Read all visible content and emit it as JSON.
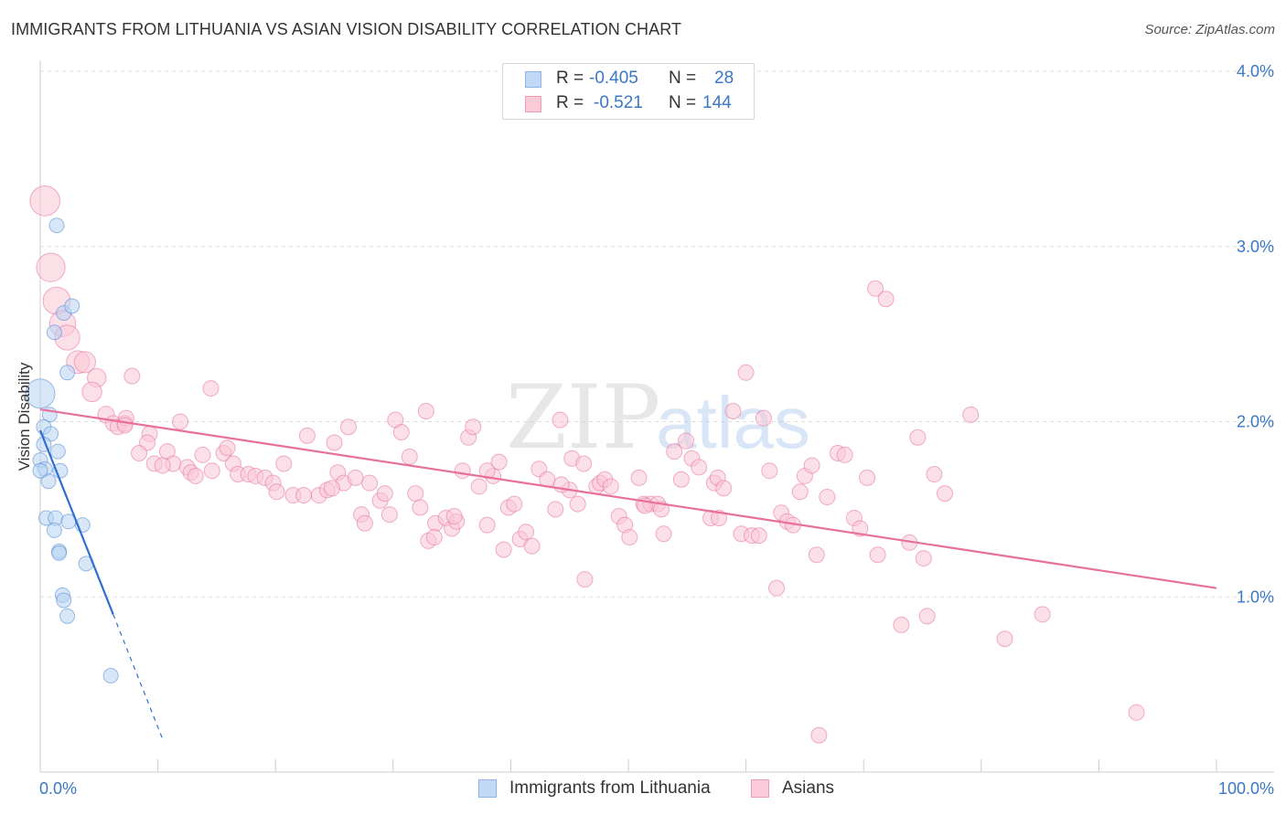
{
  "title": "IMMIGRANTS FROM LITHUANIA VS ASIAN VISION DISABILITY CORRELATION CHART",
  "source": "Source: ZipAtlas.com",
  "watermark": {
    "zip": "ZIP",
    "atlas": "atlas"
  },
  "legend": {
    "rows": [
      {
        "r_label": "R =",
        "r_value": "-0.405",
        "n_label": "N =",
        "n_value": "28",
        "color": "#a9c9f0"
      },
      {
        "r_label": "R =",
        "r_value": "-0.521",
        "n_label": "N =",
        "n_value": "144",
        "color": "#f6b3c8"
      }
    ]
  },
  "bottom_legend": [
    {
      "label": "Immigrants from Lithuania",
      "color": "#a9c9f0"
    },
    {
      "label": "Asians",
      "color": "#f6b3c8"
    }
  ],
  "chart_data": {
    "type": "scatter",
    "title": "IMMIGRANTS FROM LITHUANIA VS ASIAN VISION DISABILITY CORRELATION CHART",
    "xlabel": "",
    "ylabel": "Vision Disability",
    "xlim": [
      0,
      100
    ],
    "ylim": [
      0,
      4.0
    ],
    "x_tick_labels": [
      "0.0%",
      "100.0%"
    ],
    "y_ticks": [
      1.0,
      2.0,
      3.0,
      4.0
    ],
    "y_tick_labels": [
      "1.0%",
      "2.0%",
      "3.0%",
      "4.0%"
    ],
    "grid": true,
    "series": [
      {
        "name": "Immigrants from Lithuania",
        "color": "#4f86d6",
        "fill": "#b7d3f3",
        "r": -0.405,
        "n": 28,
        "trendline": {
          "x_start": 0,
          "y_start": 1.95,
          "x_end": 6.2,
          "y_end": 0.9,
          "dashed_to_x": 10.5
        },
        "points": [
          [
            1.4,
            3.12
          ],
          [
            2.0,
            2.62
          ],
          [
            2.7,
            2.66
          ],
          [
            1.2,
            2.51
          ],
          [
            2.3,
            2.28
          ],
          [
            0.0,
            2.16
          ],
          [
            0.8,
            2.04
          ],
          [
            0.3,
            1.97
          ],
          [
            0.9,
            1.93
          ],
          [
            0.3,
            1.87
          ],
          [
            1.5,
            1.83
          ],
          [
            0.0,
            1.78
          ],
          [
            0.4,
            1.73
          ],
          [
            1.7,
            1.72
          ],
          [
            0.7,
            1.66
          ],
          [
            0.5,
            1.45
          ],
          [
            1.3,
            1.45
          ],
          [
            2.4,
            1.43
          ],
          [
            3.6,
            1.41
          ],
          [
            1.2,
            1.38
          ],
          [
            1.6,
            1.26
          ],
          [
            1.6,
            1.25
          ],
          [
            3.9,
            1.19
          ],
          [
            1.9,
            1.01
          ],
          [
            2.0,
            0.98
          ],
          [
            2.3,
            0.89
          ],
          [
            6.0,
            0.55
          ],
          [
            0.0,
            1.72
          ]
        ]
      },
      {
        "name": "Asians",
        "color": "#e8709a",
        "fill": "#f9c6d6",
        "r": -0.521,
        "n": 144,
        "trendline": {
          "x_start": 0,
          "y_start": 2.07,
          "x_end": 100,
          "y_end": 1.05
        },
        "points": [
          [
            0.4,
            3.26
          ],
          [
            0.9,
            2.88
          ],
          [
            1.4,
            2.69
          ],
          [
            1.9,
            2.56
          ],
          [
            2.3,
            2.48
          ],
          [
            3.2,
            2.34
          ],
          [
            3.8,
            2.34
          ],
          [
            4.8,
            2.25
          ],
          [
            4.4,
            2.17
          ],
          [
            7.8,
            2.26
          ],
          [
            14.5,
            2.19
          ],
          [
            5.6,
            2.04
          ],
          [
            6.2,
            1.99
          ],
          [
            6.6,
            1.97
          ],
          [
            7.2,
            1.99
          ],
          [
            7.3,
            2.02
          ],
          [
            11.9,
            2.0
          ],
          [
            7.2,
            1.98
          ],
          [
            9.3,
            1.93
          ],
          [
            9.1,
            1.88
          ],
          [
            8.4,
            1.82
          ],
          [
            10.8,
            1.83
          ],
          [
            9.7,
            1.76
          ],
          [
            11.3,
            1.76
          ],
          [
            12.5,
            1.74
          ],
          [
            13.8,
            1.81
          ],
          [
            15.6,
            1.82
          ],
          [
            10.4,
            1.75
          ],
          [
            12.8,
            1.71
          ],
          [
            13.2,
            1.69
          ],
          [
            14.6,
            1.72
          ],
          [
            15.9,
            1.85
          ],
          [
            16.4,
            1.76
          ],
          [
            16.8,
            1.7
          ],
          [
            17.7,
            1.7
          ],
          [
            18.3,
            1.69
          ],
          [
            19.1,
            1.68
          ],
          [
            19.8,
            1.65
          ],
          [
            20.1,
            1.6
          ],
          [
            20.7,
            1.76
          ],
          [
            21.5,
            1.58
          ],
          [
            22.4,
            1.58
          ],
          [
            22.7,
            1.92
          ],
          [
            23.7,
            1.58
          ],
          [
            24.4,
            1.61
          ],
          [
            25.0,
            1.88
          ],
          [
            25.3,
            1.71
          ],
          [
            25.8,
            1.65
          ],
          [
            24.8,
            1.62
          ],
          [
            26.2,
            1.97
          ],
          [
            26.8,
            1.68
          ],
          [
            27.3,
            1.47
          ],
          [
            27.6,
            1.42
          ],
          [
            28.0,
            1.65
          ],
          [
            28.9,
            1.55
          ],
          [
            29.3,
            1.59
          ],
          [
            29.7,
            1.47
          ],
          [
            30.2,
            2.01
          ],
          [
            30.7,
            1.94
          ],
          [
            31.4,
            1.8
          ],
          [
            31.9,
            1.59
          ],
          [
            32.3,
            1.51
          ],
          [
            32.8,
            2.06
          ],
          [
            33.0,
            1.32
          ],
          [
            33.6,
            1.42
          ],
          [
            33.5,
            1.34
          ],
          [
            34.5,
            1.45
          ],
          [
            35.0,
            1.39
          ],
          [
            35.4,
            1.43
          ],
          [
            35.2,
            1.46
          ],
          [
            35.9,
            1.72
          ],
          [
            36.4,
            1.91
          ],
          [
            36.8,
            1.97
          ],
          [
            37.3,
            1.63
          ],
          [
            38.0,
            1.41
          ],
          [
            38.5,
            1.69
          ],
          [
            38.0,
            1.72
          ],
          [
            39.0,
            1.77
          ],
          [
            39.4,
            1.27
          ],
          [
            39.8,
            1.51
          ],
          [
            40.3,
            1.53
          ],
          [
            40.8,
            1.33
          ],
          [
            41.3,
            1.37
          ],
          [
            41.8,
            1.29
          ],
          [
            42.4,
            1.73
          ],
          [
            43.1,
            1.67
          ],
          [
            43.8,
            1.5
          ],
          [
            44.2,
            2.01
          ],
          [
            45.0,
            1.61
          ],
          [
            45.2,
            1.79
          ],
          [
            45.7,
            1.53
          ],
          [
            46.2,
            1.76
          ],
          [
            44.3,
            1.64
          ],
          [
            46.3,
            1.1
          ],
          [
            47.3,
            1.63
          ],
          [
            47.6,
            1.65
          ],
          [
            48.0,
            1.67
          ],
          [
            48.5,
            1.63
          ],
          [
            49.2,
            1.46
          ],
          [
            49.7,
            1.41
          ],
          [
            50.1,
            1.34
          ],
          [
            50.9,
            1.68
          ],
          [
            51.3,
            1.53
          ],
          [
            51.9,
            1.53
          ],
          [
            52.5,
            1.53
          ],
          [
            52.8,
            1.5
          ],
          [
            51.4,
            1.52
          ],
          [
            53.0,
            1.36
          ],
          [
            53.9,
            1.83
          ],
          [
            54.5,
            1.67
          ],
          [
            54.9,
            1.89
          ],
          [
            55.4,
            1.79
          ],
          [
            56.0,
            1.74
          ],
          [
            57.0,
            1.45
          ],
          [
            57.3,
            1.65
          ],
          [
            57.6,
            1.68
          ],
          [
            58.1,
            1.62
          ],
          [
            57.7,
            1.45
          ],
          [
            58.9,
            2.06
          ],
          [
            59.6,
            1.36
          ],
          [
            60.0,
            2.28
          ],
          [
            60.5,
            1.35
          ],
          [
            61.1,
            1.35
          ],
          [
            61.5,
            2.02
          ],
          [
            62.0,
            1.72
          ],
          [
            62.6,
            1.05
          ],
          [
            63.0,
            1.48
          ],
          [
            63.5,
            1.43
          ],
          [
            64.0,
            1.41
          ],
          [
            64.6,
            1.6
          ],
          [
            65.0,
            1.69
          ],
          [
            65.6,
            1.75
          ],
          [
            66.0,
            1.24
          ],
          [
            66.2,
            0.21
          ],
          [
            66.9,
            1.57
          ],
          [
            67.8,
            1.82
          ],
          [
            68.4,
            1.81
          ],
          [
            69.2,
            1.45
          ],
          [
            69.7,
            1.39
          ],
          [
            70.3,
            1.68
          ],
          [
            71.2,
            1.24
          ],
          [
            71.0,
            2.76
          ],
          [
            71.9,
            2.7
          ],
          [
            73.2,
            0.84
          ],
          [
            73.9,
            1.31
          ],
          [
            74.6,
            1.91
          ],
          [
            75.1,
            1.22
          ],
          [
            75.4,
            0.89
          ],
          [
            76.0,
            1.7
          ],
          [
            76.9,
            1.59
          ],
          [
            79.1,
            2.04
          ],
          [
            82.0,
            0.76
          ],
          [
            85.2,
            0.9
          ],
          [
            93.2,
            0.34
          ]
        ]
      }
    ]
  }
}
